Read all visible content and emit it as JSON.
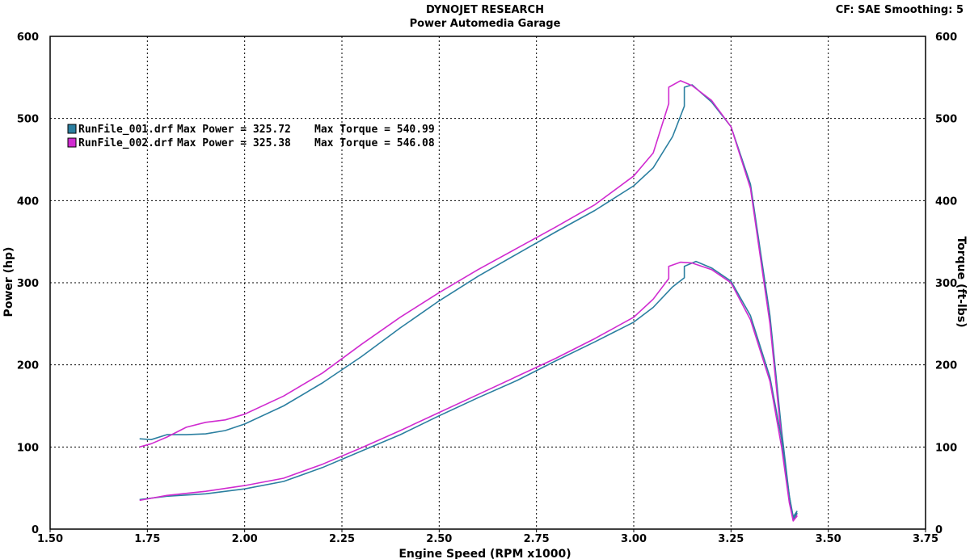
{
  "header": {
    "title": "DYNOJET RESEARCH",
    "subtitle": "Power Automedia Garage",
    "cf_info": "CF: SAE  Smoothing: 5"
  },
  "colors": {
    "run1": "#2b7fa0",
    "run2": "#d02bd0",
    "grid": "#000000",
    "frame": "#000000"
  },
  "chart_data": {
    "type": "line",
    "xlabel": "Engine Speed (RPM x1000)",
    "ylabel_left": "Power (hp)",
    "ylabel_right": "Torque (ft-lbs)",
    "xlim": [
      1.5,
      3.75
    ],
    "ylim": [
      0,
      600
    ],
    "x_ticks": [
      "1.50",
      "1.75",
      "2.00",
      "2.25",
      "2.50",
      "2.75",
      "3.00",
      "3.25",
      "3.50",
      "3.75"
    ],
    "y_ticks": [
      "0",
      "100",
      "200",
      "300",
      "400",
      "500",
      "600"
    ],
    "grid": true,
    "legend": [
      {
        "name": "RunFile_001.drf",
        "max_power_label": "Max Power = 325.72",
        "max_torque_label": "Max Torque = 540.99"
      },
      {
        "name": "RunFile_002.drf",
        "max_power_label": "Max Power = 325.38",
        "max_torque_label": "Max Torque = 546.08"
      }
    ],
    "series": [
      {
        "name": "RunFile_001.drf Torque",
        "run": 1,
        "points": [
          [
            1.73,
            110
          ],
          [
            1.76,
            109
          ],
          [
            1.8,
            115
          ],
          [
            1.85,
            115
          ],
          [
            1.9,
            116
          ],
          [
            1.95,
            120
          ],
          [
            2.0,
            128
          ],
          [
            2.1,
            150
          ],
          [
            2.2,
            178
          ],
          [
            2.3,
            210
          ],
          [
            2.4,
            245
          ],
          [
            2.5,
            278
          ],
          [
            2.6,
            308
          ],
          [
            2.7,
            335
          ],
          [
            2.8,
            362
          ],
          [
            2.9,
            388
          ],
          [
            3.0,
            418
          ],
          [
            3.05,
            440
          ],
          [
            3.1,
            478
          ],
          [
            3.13,
            515
          ],
          [
            3.13,
            538
          ],
          [
            3.15,
            541
          ],
          [
            3.2,
            520
          ],
          [
            3.25,
            490
          ],
          [
            3.3,
            420
          ],
          [
            3.35,
            260
          ],
          [
            3.38,
            120
          ],
          [
            3.4,
            40
          ],
          [
            3.41,
            15
          ],
          [
            3.42,
            22
          ]
        ]
      },
      {
        "name": "RunFile_002.drf Torque",
        "run": 2,
        "points": [
          [
            1.73,
            100
          ],
          [
            1.76,
            104
          ],
          [
            1.8,
            112
          ],
          [
            1.85,
            124
          ],
          [
            1.9,
            130
          ],
          [
            1.95,
            133
          ],
          [
            2.0,
            140
          ],
          [
            2.1,
            162
          ],
          [
            2.2,
            190
          ],
          [
            2.3,
            225
          ],
          [
            2.4,
            258
          ],
          [
            2.5,
            288
          ],
          [
            2.6,
            316
          ],
          [
            2.7,
            342
          ],
          [
            2.8,
            368
          ],
          [
            2.9,
            395
          ],
          [
            3.0,
            430
          ],
          [
            3.05,
            458
          ],
          [
            3.09,
            518
          ],
          [
            3.09,
            538
          ],
          [
            3.12,
            546
          ],
          [
            3.15,
            540
          ],
          [
            3.2,
            522
          ],
          [
            3.25,
            490
          ],
          [
            3.3,
            415
          ],
          [
            3.35,
            250
          ],
          [
            3.38,
            110
          ],
          [
            3.4,
            35
          ],
          [
            3.41,
            10
          ],
          [
            3.42,
            18
          ]
        ]
      },
      {
        "name": "RunFile_001.drf Power",
        "run": 1,
        "points": [
          [
            1.73,
            36
          ],
          [
            1.8,
            40
          ],
          [
            1.9,
            43
          ],
          [
            2.0,
            49
          ],
          [
            2.1,
            58
          ],
          [
            2.2,
            75
          ],
          [
            2.3,
            95
          ],
          [
            2.4,
            115
          ],
          [
            2.5,
            138
          ],
          [
            2.6,
            160
          ],
          [
            2.7,
            181
          ],
          [
            2.8,
            205
          ],
          [
            2.9,
            228
          ],
          [
            3.0,
            252
          ],
          [
            3.05,
            270
          ],
          [
            3.1,
            295
          ],
          [
            3.13,
            306
          ],
          [
            3.13,
            320
          ],
          [
            3.16,
            326
          ],
          [
            3.2,
            318
          ],
          [
            3.25,
            302
          ],
          [
            3.3,
            260
          ],
          [
            3.35,
            185
          ],
          [
            3.38,
            110
          ],
          [
            3.4,
            40
          ],
          [
            3.41,
            12
          ],
          [
            3.42,
            20
          ]
        ]
      },
      {
        "name": "RunFile_002.drf Power",
        "run": 2,
        "points": [
          [
            1.73,
            35
          ],
          [
            1.8,
            41
          ],
          [
            1.9,
            46
          ],
          [
            2.0,
            53
          ],
          [
            2.1,
            62
          ],
          [
            2.2,
            79
          ],
          [
            2.3,
            99
          ],
          [
            2.4,
            120
          ],
          [
            2.5,
            142
          ],
          [
            2.6,
            164
          ],
          [
            2.7,
            186
          ],
          [
            2.8,
            208
          ],
          [
            2.9,
            232
          ],
          [
            3.0,
            258
          ],
          [
            3.05,
            280
          ],
          [
            3.09,
            305
          ],
          [
            3.09,
            320
          ],
          [
            3.12,
            325
          ],
          [
            3.15,
            324
          ],
          [
            3.2,
            316
          ],
          [
            3.25,
            300
          ],
          [
            3.3,
            255
          ],
          [
            3.35,
            180
          ],
          [
            3.38,
            100
          ],
          [
            3.4,
            32
          ],
          [
            3.41,
            10
          ],
          [
            3.42,
            16
          ]
        ]
      }
    ]
  }
}
